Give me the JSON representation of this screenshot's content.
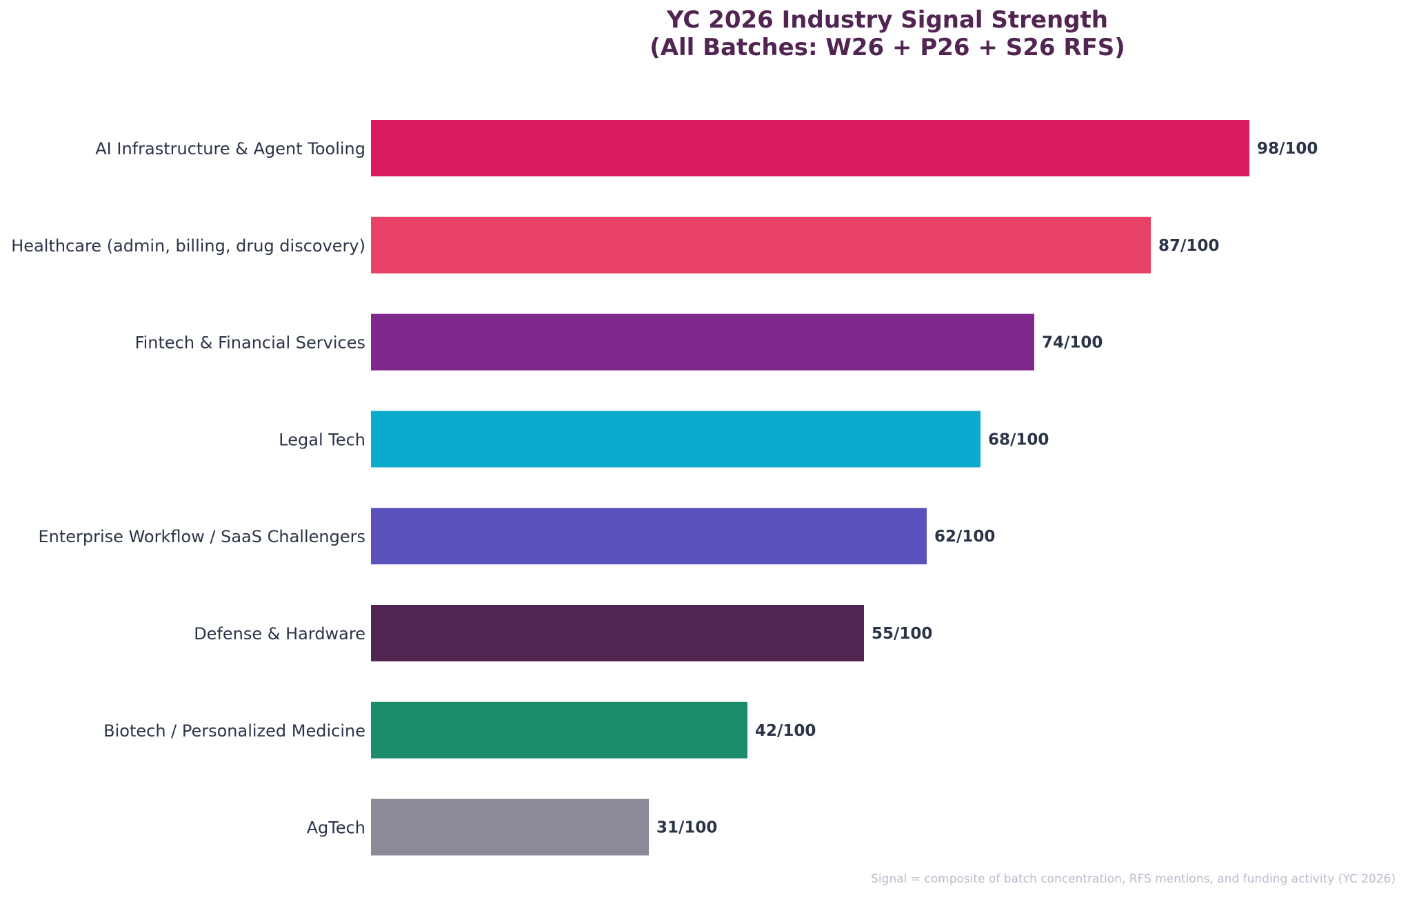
{
  "chart_data": {
    "type": "bar",
    "orientation": "horizontal",
    "title": "YC 2026 Industry Signal Strength",
    "subtitle": "(All Batches: W26 + P26 + S26 RFS)",
    "xlabel": "",
    "ylabel": "",
    "xlim": [
      0,
      115
    ],
    "grid": false,
    "legend": "none",
    "categories": [
      "AI Infrastructure & Agent Tooling",
      "Healthcare (admin, billing, drug discovery)",
      "Fintech & Financial Services",
      "Legal Tech",
      "Enterprise Workflow / SaaS Challengers",
      "Defense & Hardware",
      "Biotech / Personalized Medicine",
      "AgTech"
    ],
    "values": [
      98,
      87,
      74,
      68,
      62,
      55,
      42,
      31
    ],
    "value_labels": [
      "98/100",
      "87/100",
      "74/100",
      "68/100",
      "62/100",
      "55/100",
      "42/100",
      "31/100"
    ],
    "bar_colors": [
      "#d81b60",
      "#e84166",
      "#80288c",
      "#0aaacd",
      "#5c52bd",
      "#512452",
      "#1b8b6a",
      "#8b8a98"
    ],
    "footnote": "Signal = composite of batch concentration, RFS mentions, and funding activity (YC 2026)"
  },
  "colors": {
    "title": "#512452",
    "category_label": "#2b3447",
    "value_label": "#2b3447",
    "footnote": "#b9bccb",
    "background": "#ffffff"
  }
}
